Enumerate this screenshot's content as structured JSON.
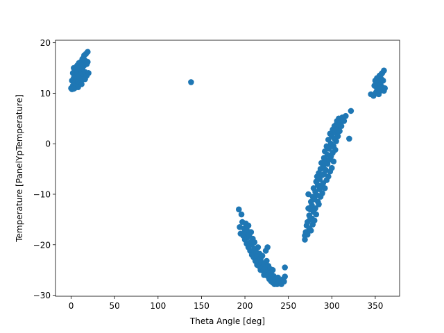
{
  "chart_data": {
    "type": "scatter",
    "title": "",
    "xlabel": "Theta Angle [deg]",
    "ylabel": "Temperature [PanelYpTemperature]",
    "xlim": [
      -18,
      378
    ],
    "ylim": [
      -30.2,
      20.5
    ],
    "xticks": [
      0,
      50,
      100,
      150,
      200,
      250,
      300,
      350
    ],
    "yticks": [
      -30,
      -20,
      -10,
      0,
      10,
      20
    ],
    "grid": false,
    "legend": "none",
    "marker_color": "#1f77b4",
    "series": [
      {
        "points": [
          [
            0,
            11
          ],
          [
            1,
            12.5
          ],
          [
            2,
            14
          ],
          [
            2,
            11.5
          ],
          [
            3,
            13
          ],
          [
            3,
            15
          ],
          [
            4,
            11
          ],
          [
            4,
            12
          ],
          [
            5,
            13.5
          ],
          [
            5,
            14.5
          ],
          [
            6,
            11.5
          ],
          [
            6,
            12.8
          ],
          [
            7,
            14
          ],
          [
            7,
            15.5
          ],
          [
            8,
            11.2
          ],
          [
            8,
            12.2
          ],
          [
            9,
            13.3
          ],
          [
            9,
            14.7
          ],
          [
            10,
            15.8
          ],
          [
            10,
            12
          ],
          [
            11,
            13
          ],
          [
            11,
            16.2
          ],
          [
            12,
            11.8
          ],
          [
            12,
            14.2
          ],
          [
            13,
            15
          ],
          [
            13,
            16.8
          ],
          [
            14,
            12.8
          ],
          [
            14,
            13.8
          ],
          [
            15,
            15.5
          ],
          [
            15,
            17.5
          ],
          [
            16,
            14.2
          ],
          [
            16,
            16.5
          ],
          [
            17,
            17.8
          ],
          [
            18,
            13.5
          ],
          [
            18,
            15.8
          ],
          [
            19,
            16.2
          ],
          [
            19,
            18.2
          ],
          [
            20,
            14
          ],
          [
            1,
            10.8
          ],
          [
            3,
            10.9
          ],
          [
            6,
            15.2
          ],
          [
            9,
            16
          ],
          [
            12,
            15.5
          ],
          [
            16,
            12.8
          ],
          [
            138,
            12.2
          ],
          [
            193,
            -13
          ],
          [
            194,
            -16.5
          ],
          [
            195,
            -17.8
          ],
          [
            196,
            -14
          ],
          [
            197,
            -15.5
          ],
          [
            198,
            -18.2
          ],
          [
            199,
            -16.8
          ],
          [
            200,
            -17.5
          ],
          [
            200,
            -19
          ],
          [
            201,
            -15.8
          ],
          [
            202,
            -17
          ],
          [
            202,
            -19.8
          ],
          [
            203,
            -18.5
          ],
          [
            204,
            -16.2
          ],
          [
            204,
            -20.5
          ],
          [
            205,
            -18
          ],
          [
            206,
            -19.5
          ],
          [
            206,
            -21.2
          ],
          [
            207,
            -17.5
          ],
          [
            208,
            -20
          ],
          [
            208,
            -22
          ],
          [
            209,
            -18.8
          ],
          [
            210,
            -21
          ],
          [
            210,
            -22.5
          ],
          [
            211,
            -19.5
          ],
          [
            212,
            -20.8
          ],
          [
            212,
            -23.2
          ],
          [
            213,
            -21.5
          ],
          [
            214,
            -22.2
          ],
          [
            214,
            -24
          ],
          [
            215,
            -20.5
          ],
          [
            216,
            -23
          ],
          [
            216,
            -24.2
          ],
          [
            217,
            -21.8
          ],
          [
            218,
            -22.8
          ],
          [
            218,
            -25
          ],
          [
            219,
            -23.5
          ],
          [
            220,
            -24.5
          ],
          [
            220,
            -22.2
          ],
          [
            221,
            -25.2
          ],
          [
            222,
            -23.8
          ],
          [
            222,
            -26
          ],
          [
            223,
            -24.8
          ],
          [
            224,
            -21.2
          ],
          [
            224,
            -25.5
          ],
          [
            225,
            -23.2
          ],
          [
            226,
            -26.2
          ],
          [
            226,
            -20.5
          ],
          [
            227,
            -24.2
          ],
          [
            228,
            -25.8
          ],
          [
            228,
            -26.8
          ],
          [
            229,
            -24.8
          ],
          [
            230,
            -27.2
          ],
          [
            230,
            -25.5
          ],
          [
            231,
            -26.5
          ],
          [
            232,
            -27.5
          ],
          [
            232,
            -25
          ],
          [
            233,
            -26.2
          ],
          [
            234,
            -27.8
          ],
          [
            235,
            -26.8
          ],
          [
            236,
            -27
          ],
          [
            237,
            -27.8
          ],
          [
            238,
            -26.5
          ],
          [
            240,
            -27.2
          ],
          [
            242,
            -27.8
          ],
          [
            244,
            -26.8
          ],
          [
            245,
            -27.3
          ],
          [
            246,
            -24.5
          ],
          [
            246,
            -26.3
          ],
          [
            269,
            -19
          ],
          [
            269,
            -18.2
          ],
          [
            270,
            -17.5
          ],
          [
            271,
            -16.2
          ],
          [
            272,
            -15.5
          ],
          [
            272,
            -18
          ],
          [
            273,
            -12.8
          ],
          [
            273,
            -10
          ],
          [
            274,
            -16.8
          ],
          [
            274,
            -14.2
          ],
          [
            275,
            -13
          ],
          [
            275,
            -15
          ],
          [
            276,
            -11.5
          ],
          [
            276,
            -17.2
          ],
          [
            277,
            -12.2
          ],
          [
            277,
            -14.8
          ],
          [
            278,
            -10.5
          ],
          [
            278,
            -16
          ],
          [
            279,
            -13.5
          ],
          [
            279,
            -8.8
          ],
          [
            280,
            -11
          ],
          [
            280,
            -15.2
          ],
          [
            281,
            -9.5
          ],
          [
            281,
            -12.8
          ],
          [
            282,
            -7.5
          ],
          [
            282,
            -14
          ],
          [
            283,
            -10.2
          ],
          [
            283,
            -6.5
          ],
          [
            284,
            -11.5
          ],
          [
            284,
            -8.2
          ],
          [
            285,
            -5.8
          ],
          [
            285,
            -12
          ],
          [
            286,
            -9
          ],
          [
            286,
            -7
          ],
          [
            287,
            -10.5
          ],
          [
            287,
            -5
          ],
          [
            288,
            -8.5
          ],
          [
            288,
            -3.8
          ],
          [
            289,
            -6.2
          ],
          [
            289,
            -9.8
          ],
          [
            290,
            -4.5
          ],
          [
            290,
            -7.8
          ],
          [
            291,
            -2.8
          ],
          [
            291,
            -6
          ],
          [
            292,
            -8.8
          ],
          [
            292,
            -1.5
          ],
          [
            293,
            -5.2
          ],
          [
            293,
            -3.5
          ],
          [
            294,
            -7.2
          ],
          [
            294,
            -0.5
          ],
          [
            295,
            -4
          ],
          [
            295,
            -2.2
          ],
          [
            296,
            -6.5
          ],
          [
            296,
            0.8
          ],
          [
            297,
            -3.2
          ],
          [
            297,
            -1
          ],
          [
            298,
            -5.5
          ],
          [
            298,
            2
          ],
          [
            299,
            -2.5
          ],
          [
            299,
            0
          ],
          [
            300,
            -4.8
          ],
          [
            300,
            1.5
          ],
          [
            301,
            -1.8
          ],
          [
            301,
            2.8
          ],
          [
            302,
            -0.5
          ],
          [
            302,
            -3.5
          ],
          [
            303,
            1
          ],
          [
            303,
            3.5
          ],
          [
            304,
            -1.2
          ],
          [
            304,
            2.2
          ],
          [
            305,
            3.8
          ],
          [
            305,
            0.5
          ],
          [
            306,
            2.8
          ],
          [
            306,
            4.5
          ],
          [
            307,
            1.5
          ],
          [
            308,
            3.8
          ],
          [
            308,
            5
          ],
          [
            309,
            2.5
          ],
          [
            310,
            4.2
          ],
          [
            311,
            3.5
          ],
          [
            312,
            5.2
          ],
          [
            314,
            4.5
          ],
          [
            316,
            5.5
          ],
          [
            320,
            1
          ],
          [
            322,
            6.5
          ],
          [
            345,
            9.8
          ],
          [
            348,
            9.5
          ],
          [
            349,
            11.5
          ],
          [
            350,
            12.5
          ],
          [
            351,
            10.2
          ],
          [
            352,
            11
          ],
          [
            352,
            13
          ],
          [
            353,
            12
          ],
          [
            354,
            9.8
          ],
          [
            354,
            10.8
          ],
          [
            355,
            13.5
          ],
          [
            356,
            11.8
          ],
          [
            356,
            10.5
          ],
          [
            357,
            12.8
          ],
          [
            357,
            13.8
          ],
          [
            358,
            11.2
          ],
          [
            358,
            14
          ],
          [
            359,
            12.5
          ],
          [
            360,
            14.5
          ],
          [
            360,
            10.5
          ],
          [
            361,
            11
          ]
        ]
      }
    ]
  }
}
